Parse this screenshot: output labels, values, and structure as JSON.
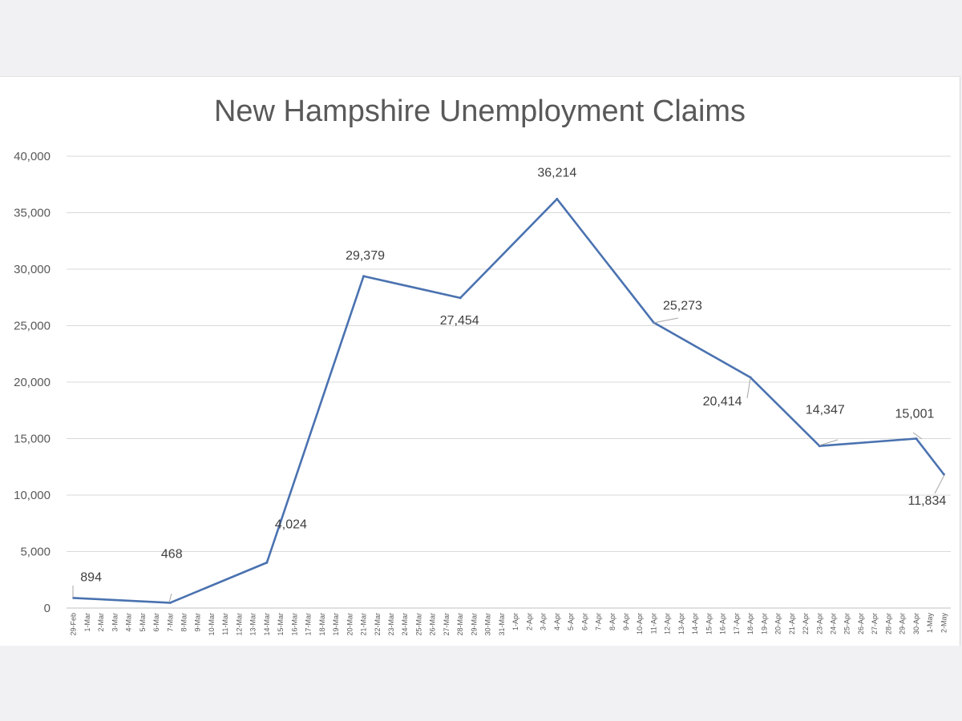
{
  "chart_data": {
    "type": "line",
    "title": "New Hampshire Unemployment Claims",
    "xlabel": "",
    "ylabel": "",
    "ylim": [
      0,
      40000
    ],
    "yticks": [
      "0",
      "5,000",
      "10,000",
      "15,000",
      "20,000",
      "25,000",
      "30,000",
      "35,000",
      "40,000"
    ],
    "grid": true,
    "legend": "none",
    "line_color": "#4a72b0",
    "x_categories": [
      "29-Feb",
      "1-Mar",
      "2-Mar",
      "3-Mar",
      "4-Mar",
      "5-Mar",
      "6-Mar",
      "7-Mar",
      "8-Mar",
      "9-Mar",
      "10-Mar",
      "11-Mar",
      "12-Mar",
      "13-Mar",
      "14-Mar",
      "15-Mar",
      "16-Mar",
      "17-Mar",
      "18-Mar",
      "19-Mar",
      "20-Mar",
      "21-Mar",
      "22-Mar",
      "23-Mar",
      "24-Mar",
      "25-Mar",
      "26-Mar",
      "27-Mar",
      "28-Mar",
      "29-Mar",
      "30-Mar",
      "31-Mar",
      "1-Apr",
      "2-Apr",
      "3-Apr",
      "4-Apr",
      "5-Apr",
      "6-Apr",
      "7-Apr",
      "8-Apr",
      "9-Apr",
      "10-Apr",
      "11-Apr",
      "12-Apr",
      "13-Apr",
      "14-Apr",
      "15-Apr",
      "16-Apr",
      "17-Apr",
      "18-Apr",
      "19-Apr",
      "20-Apr",
      "21-Apr",
      "22-Apr",
      "23-Apr",
      "24-Apr",
      "25-Apr",
      "26-Apr",
      "27-Apr",
      "28-Apr",
      "29-Apr",
      "30-Apr",
      "1-May",
      "2-May"
    ],
    "points": [
      {
        "x": "29-Feb",
        "y": 894,
        "label": "894"
      },
      {
        "x": "7-Mar",
        "y": 468,
        "label": "468"
      },
      {
        "x": "14-Mar",
        "y": 4024,
        "label": "4,024"
      },
      {
        "x": "21-Mar",
        "y": 29379,
        "label": "29,379"
      },
      {
        "x": "28-Mar",
        "y": 27454,
        "label": "27,454"
      },
      {
        "x": "4-Apr",
        "y": 36214,
        "label": "36,214"
      },
      {
        "x": "11-Apr",
        "y": 25273,
        "label": "25,273"
      },
      {
        "x": "18-Apr",
        "y": 20414,
        "label": "20,414"
      },
      {
        "x": "23-Apr",
        "y": 14347,
        "label": "14,347"
      },
      {
        "x": "30-Apr",
        "y": 15001,
        "label": "15,001"
      },
      {
        "x": "2-May",
        "y": 11834,
        "label": "11,834"
      }
    ]
  }
}
